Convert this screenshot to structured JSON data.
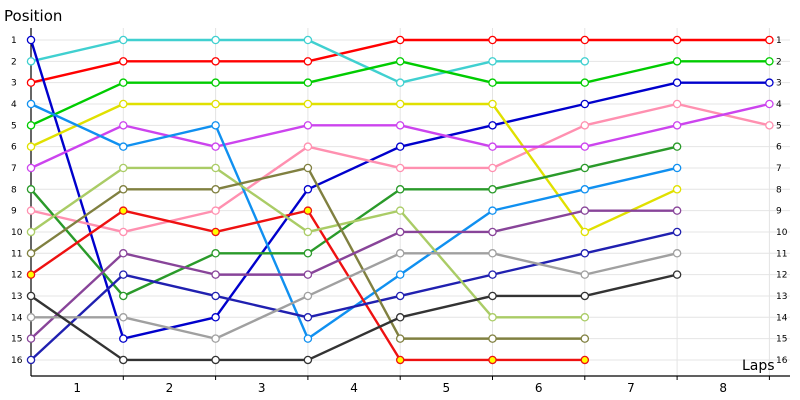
{
  "chart_data": {
    "type": "line",
    "title": "",
    "ylabel": "Position",
    "xlabel": "Laps",
    "x_ticks": [
      "1",
      "2",
      "3",
      "4",
      "5",
      "6",
      "7",
      "8"
    ],
    "ylim": [
      1,
      16
    ],
    "y_inverted": true,
    "grid": true,
    "series": [
      {
        "color": "#ff0000",
        "positions": [
          3,
          2,
          2,
          2,
          1,
          1,
          1,
          1,
          1
        ]
      },
      {
        "color": "#40d0d0",
        "positions": [
          2,
          1,
          1,
          1,
          3,
          2,
          2
        ]
      },
      {
        "color": "#0000cc",
        "positions": [
          1,
          15,
          14,
          8,
          6,
          5,
          4,
          3,
          3
        ]
      },
      {
        "color": "#ff90b0",
        "positions": [
          9,
          10,
          9,
          6,
          7,
          7,
          5,
          4,
          5
        ]
      },
      {
        "color": "#00cc00",
        "positions": [
          5,
          3,
          3,
          3,
          2,
          3,
          3,
          2,
          2
        ]
      },
      {
        "color": "#e0e000",
        "positions": [
          6,
          4,
          4,
          4,
          4,
          4,
          10,
          8
        ]
      },
      {
        "color": "#cc44ee",
        "positions": [
          7,
          5,
          6,
          5,
          5,
          6,
          6,
          5,
          4
        ]
      },
      {
        "color": "#1090f0",
        "positions": [
          4,
          6,
          5,
          15,
          12,
          9,
          8,
          7
        ]
      },
      {
        "color": "#2a9a2a",
        "positions": [
          8,
          13,
          11,
          11,
          8,
          8,
          7,
          6
        ]
      },
      {
        "color": "#ee1111",
        "positions": [
          12,
          9,
          10,
          9,
          16,
          16,
          16
        ]
      },
      {
        "color": "#2020b0",
        "positions": [
          16,
          12,
          13,
          14,
          13,
          12,
          11,
          10
        ]
      },
      {
        "color": "#aacc66",
        "positions": [
          10,
          7,
          7,
          10,
          9,
          14,
          14
        ]
      },
      {
        "color": "#808040",
        "positions": [
          11,
          8,
          8,
          7,
          15,
          15,
          15
        ]
      },
      {
        "color": "#884499",
        "positions": [
          15,
          11,
          12,
          12,
          10,
          10,
          9,
          9
        ]
      },
      {
        "color": "#a0a0a0",
        "positions": [
          14,
          14,
          15,
          13,
          11,
          11,
          12,
          11
        ]
      },
      {
        "color": "#333333",
        "positions": [
          13,
          16,
          16,
          16,
          14,
          13,
          13,
          12
        ]
      }
    ],
    "marker_fill": {
      "default": "#ffffff",
      "highlighted": "#ffff00",
      "highlighted_series": [
        "#ee1111"
      ]
    }
  }
}
